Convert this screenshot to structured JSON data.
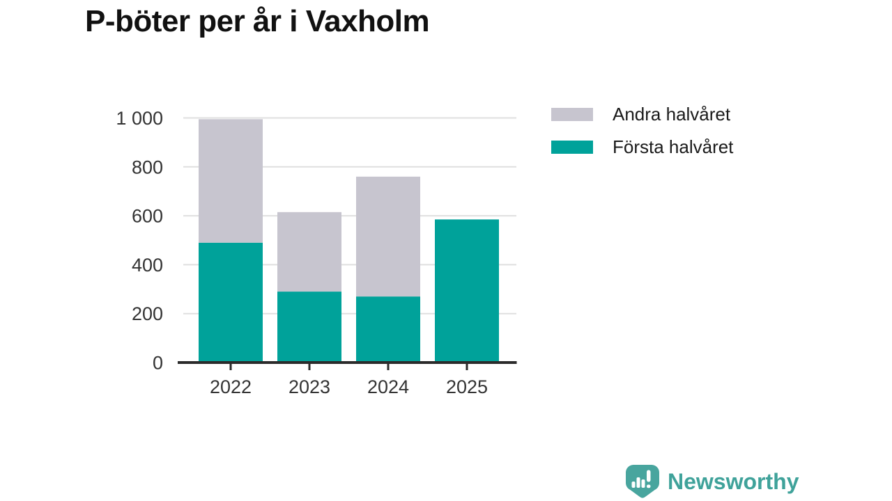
{
  "header": {
    "title": "P-böter per år i Vaxholm"
  },
  "chart_data": {
    "type": "bar",
    "stacked": true,
    "title": "P-böter per år i Vaxholm",
    "categories": [
      "2022",
      "2023",
      "2024",
      "2025"
    ],
    "series": [
      {
        "name": "Första halvåret",
        "color": "#00a29a",
        "values": [
          490,
          290,
          270,
          585
        ]
      },
      {
        "name": "Andra halvåret",
        "color": "#c7c5cf",
        "values": [
          505,
          325,
          490,
          0
        ]
      }
    ],
    "xlabel": "",
    "ylabel": "",
    "ylim": [
      0,
      1000
    ],
    "yticks": [
      0,
      200,
      400,
      600,
      800,
      1000
    ],
    "ytick_labels": [
      "0",
      "200",
      "400",
      "600",
      "800",
      "1 000"
    ],
    "grid": true,
    "legend_position": "top-right",
    "colors": {
      "gridline": "#dfdfdf",
      "axis": "#2b2b2b",
      "tick_label": "#333333"
    }
  },
  "legend": {
    "items": [
      {
        "label": "Andra halvåret",
        "color": "#c7c5cf"
      },
      {
        "label": "Första halvåret",
        "color": "#00a29a"
      }
    ]
  },
  "branding": {
    "name": "Newsworthy",
    "icon": "newsworthy-bar-chart-badge-icon",
    "color": "#3fa29a",
    "badge_color": "#48a59e"
  }
}
